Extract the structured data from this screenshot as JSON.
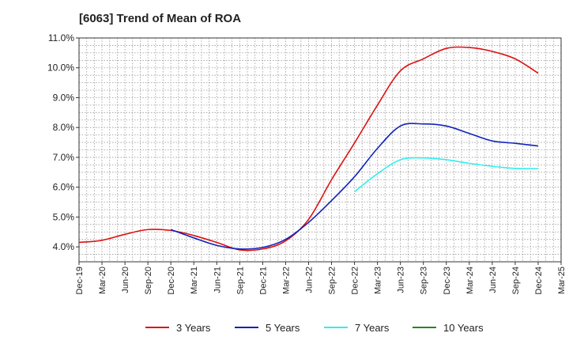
{
  "chart_data": {
    "type": "line",
    "title": "[6063]  Trend of Mean of ROA",
    "xlabel": "",
    "ylabel": "",
    "x": [
      "Dec-19",
      "Mar-20",
      "Jun-20",
      "Sep-20",
      "Dec-20",
      "Mar-21",
      "Jun-21",
      "Sep-21",
      "Dec-21",
      "Mar-22",
      "Jun-22",
      "Sep-22",
      "Dec-22",
      "Mar-23",
      "Jun-23",
      "Sep-23",
      "Dec-23",
      "Mar-24",
      "Jun-24",
      "Sep-24",
      "Dec-24",
      "Mar-25"
    ],
    "ylim": [
      3.5,
      11.0
    ],
    "yticks": [
      4.0,
      5.0,
      6.0,
      7.0,
      8.0,
      9.0,
      10.0,
      11.0
    ],
    "ytick_labels": [
      "4.0%",
      "5.0%",
      "6.0%",
      "7.0%",
      "8.0%",
      "9.0%",
      "10.0%",
      "11.0%"
    ],
    "grid": true,
    "legend_position": "bottom",
    "series": [
      {
        "name": "3 Years",
        "color": "#dd1111",
        "values": [
          4.15,
          4.22,
          4.42,
          4.58,
          4.55,
          4.38,
          4.15,
          3.9,
          3.93,
          4.2,
          4.92,
          6.25,
          7.48,
          8.75,
          9.9,
          10.3,
          10.65,
          10.68,
          10.55,
          10.3,
          9.82,
          null
        ]
      },
      {
        "name": "5 Years",
        "color": "#1122bb",
        "values": [
          null,
          null,
          null,
          null,
          4.58,
          4.3,
          4.05,
          3.93,
          3.98,
          4.25,
          4.82,
          5.55,
          6.35,
          7.3,
          8.05,
          8.12,
          8.05,
          7.8,
          7.55,
          7.47,
          7.38,
          null
        ]
      },
      {
        "name": "7 Years",
        "color": "#33eeee",
        "values": [
          null,
          null,
          null,
          null,
          null,
          null,
          null,
          null,
          null,
          null,
          null,
          null,
          5.85,
          6.45,
          6.92,
          6.98,
          6.92,
          6.8,
          6.7,
          6.63,
          6.62,
          null
        ]
      },
      {
        "name": "10 Years",
        "color": "#228822",
        "values": [
          null,
          null,
          null,
          null,
          null,
          null,
          null,
          null,
          null,
          null,
          null,
          null,
          null,
          null,
          null,
          null,
          null,
          null,
          null,
          null,
          null,
          null
        ]
      }
    ]
  }
}
